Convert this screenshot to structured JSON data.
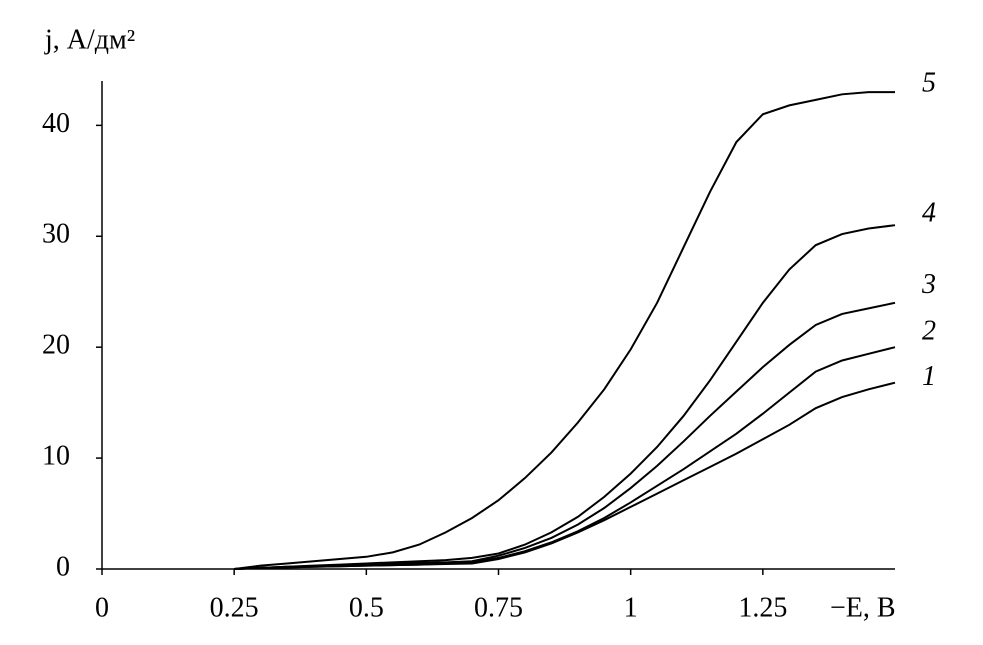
{
  "chart_data": {
    "type": "line",
    "y_label": "j, А/дм²",
    "x_label": "−E, В",
    "x": [
      0.25,
      0.3,
      0.35,
      0.4,
      0.45,
      0.5,
      0.55,
      0.6,
      0.65,
      0.7,
      0.75,
      0.8,
      0.85,
      0.9,
      0.95,
      1.0,
      1.05,
      1.1,
      1.15,
      1.2,
      1.25,
      1.3,
      1.35,
      1.4,
      1.45,
      1.5
    ],
    "series": [
      {
        "name": "1",
        "color": "#000000",
        "values": [
          0,
          0.1,
          0.15,
          0.2,
          0.25,
          0.3,
          0.35,
          0.4,
          0.45,
          0.5,
          0.9,
          1.5,
          2.3,
          3.3,
          4.4,
          5.6,
          6.8,
          8,
          9.2,
          10.4,
          11.7,
          13,
          14.5,
          15.5,
          16.2,
          16.8
        ]
      },
      {
        "name": "2",
        "color": "#000000",
        "values": [
          0,
          0.1,
          0.15,
          0.2,
          0.25,
          0.3,
          0.35,
          0.4,
          0.5,
          0.6,
          1.0,
          1.6,
          2.4,
          3.4,
          4.6,
          6,
          7.5,
          9,
          10.6,
          12.2,
          14,
          15.9,
          17.8,
          18.8,
          19.4,
          20
        ]
      },
      {
        "name": "3",
        "color": "#000000",
        "values": [
          0,
          0.1,
          0.2,
          0.25,
          0.3,
          0.35,
          0.45,
          0.55,
          0.6,
          0.7,
          1.2,
          1.9,
          2.8,
          4,
          5.5,
          7.3,
          9.3,
          11.5,
          13.8,
          16,
          18.2,
          20.2,
          22,
          23,
          23.5,
          24
        ]
      },
      {
        "name": "4",
        "color": "#000000",
        "values": [
          0,
          0.1,
          0.2,
          0.3,
          0.4,
          0.5,
          0.6,
          0.7,
          0.8,
          1.0,
          1.4,
          2.2,
          3.3,
          4.7,
          6.5,
          8.6,
          11,
          13.8,
          17,
          20.5,
          24,
          27,
          29.2,
          30.2,
          30.7,
          31
        ]
      },
      {
        "name": "5",
        "color": "#000000",
        "values": [
          0,
          0.3,
          0.5,
          0.7,
          0.9,
          1.1,
          1.5,
          2.2,
          3.3,
          4.6,
          6.2,
          8.2,
          10.5,
          13.2,
          16.2,
          19.8,
          24,
          29,
          34,
          38.5,
          41,
          41.8,
          42.3,
          42.8,
          43,
          43
        ]
      }
    ],
    "xlim": [
      0,
      1.5
    ],
    "ylim": [
      0,
      44
    ],
    "xticks": [
      0,
      0.25,
      0.5,
      0.75,
      1,
      1.25
    ],
    "yticks": [
      0,
      10,
      20,
      30,
      40
    ],
    "grid": false
  }
}
